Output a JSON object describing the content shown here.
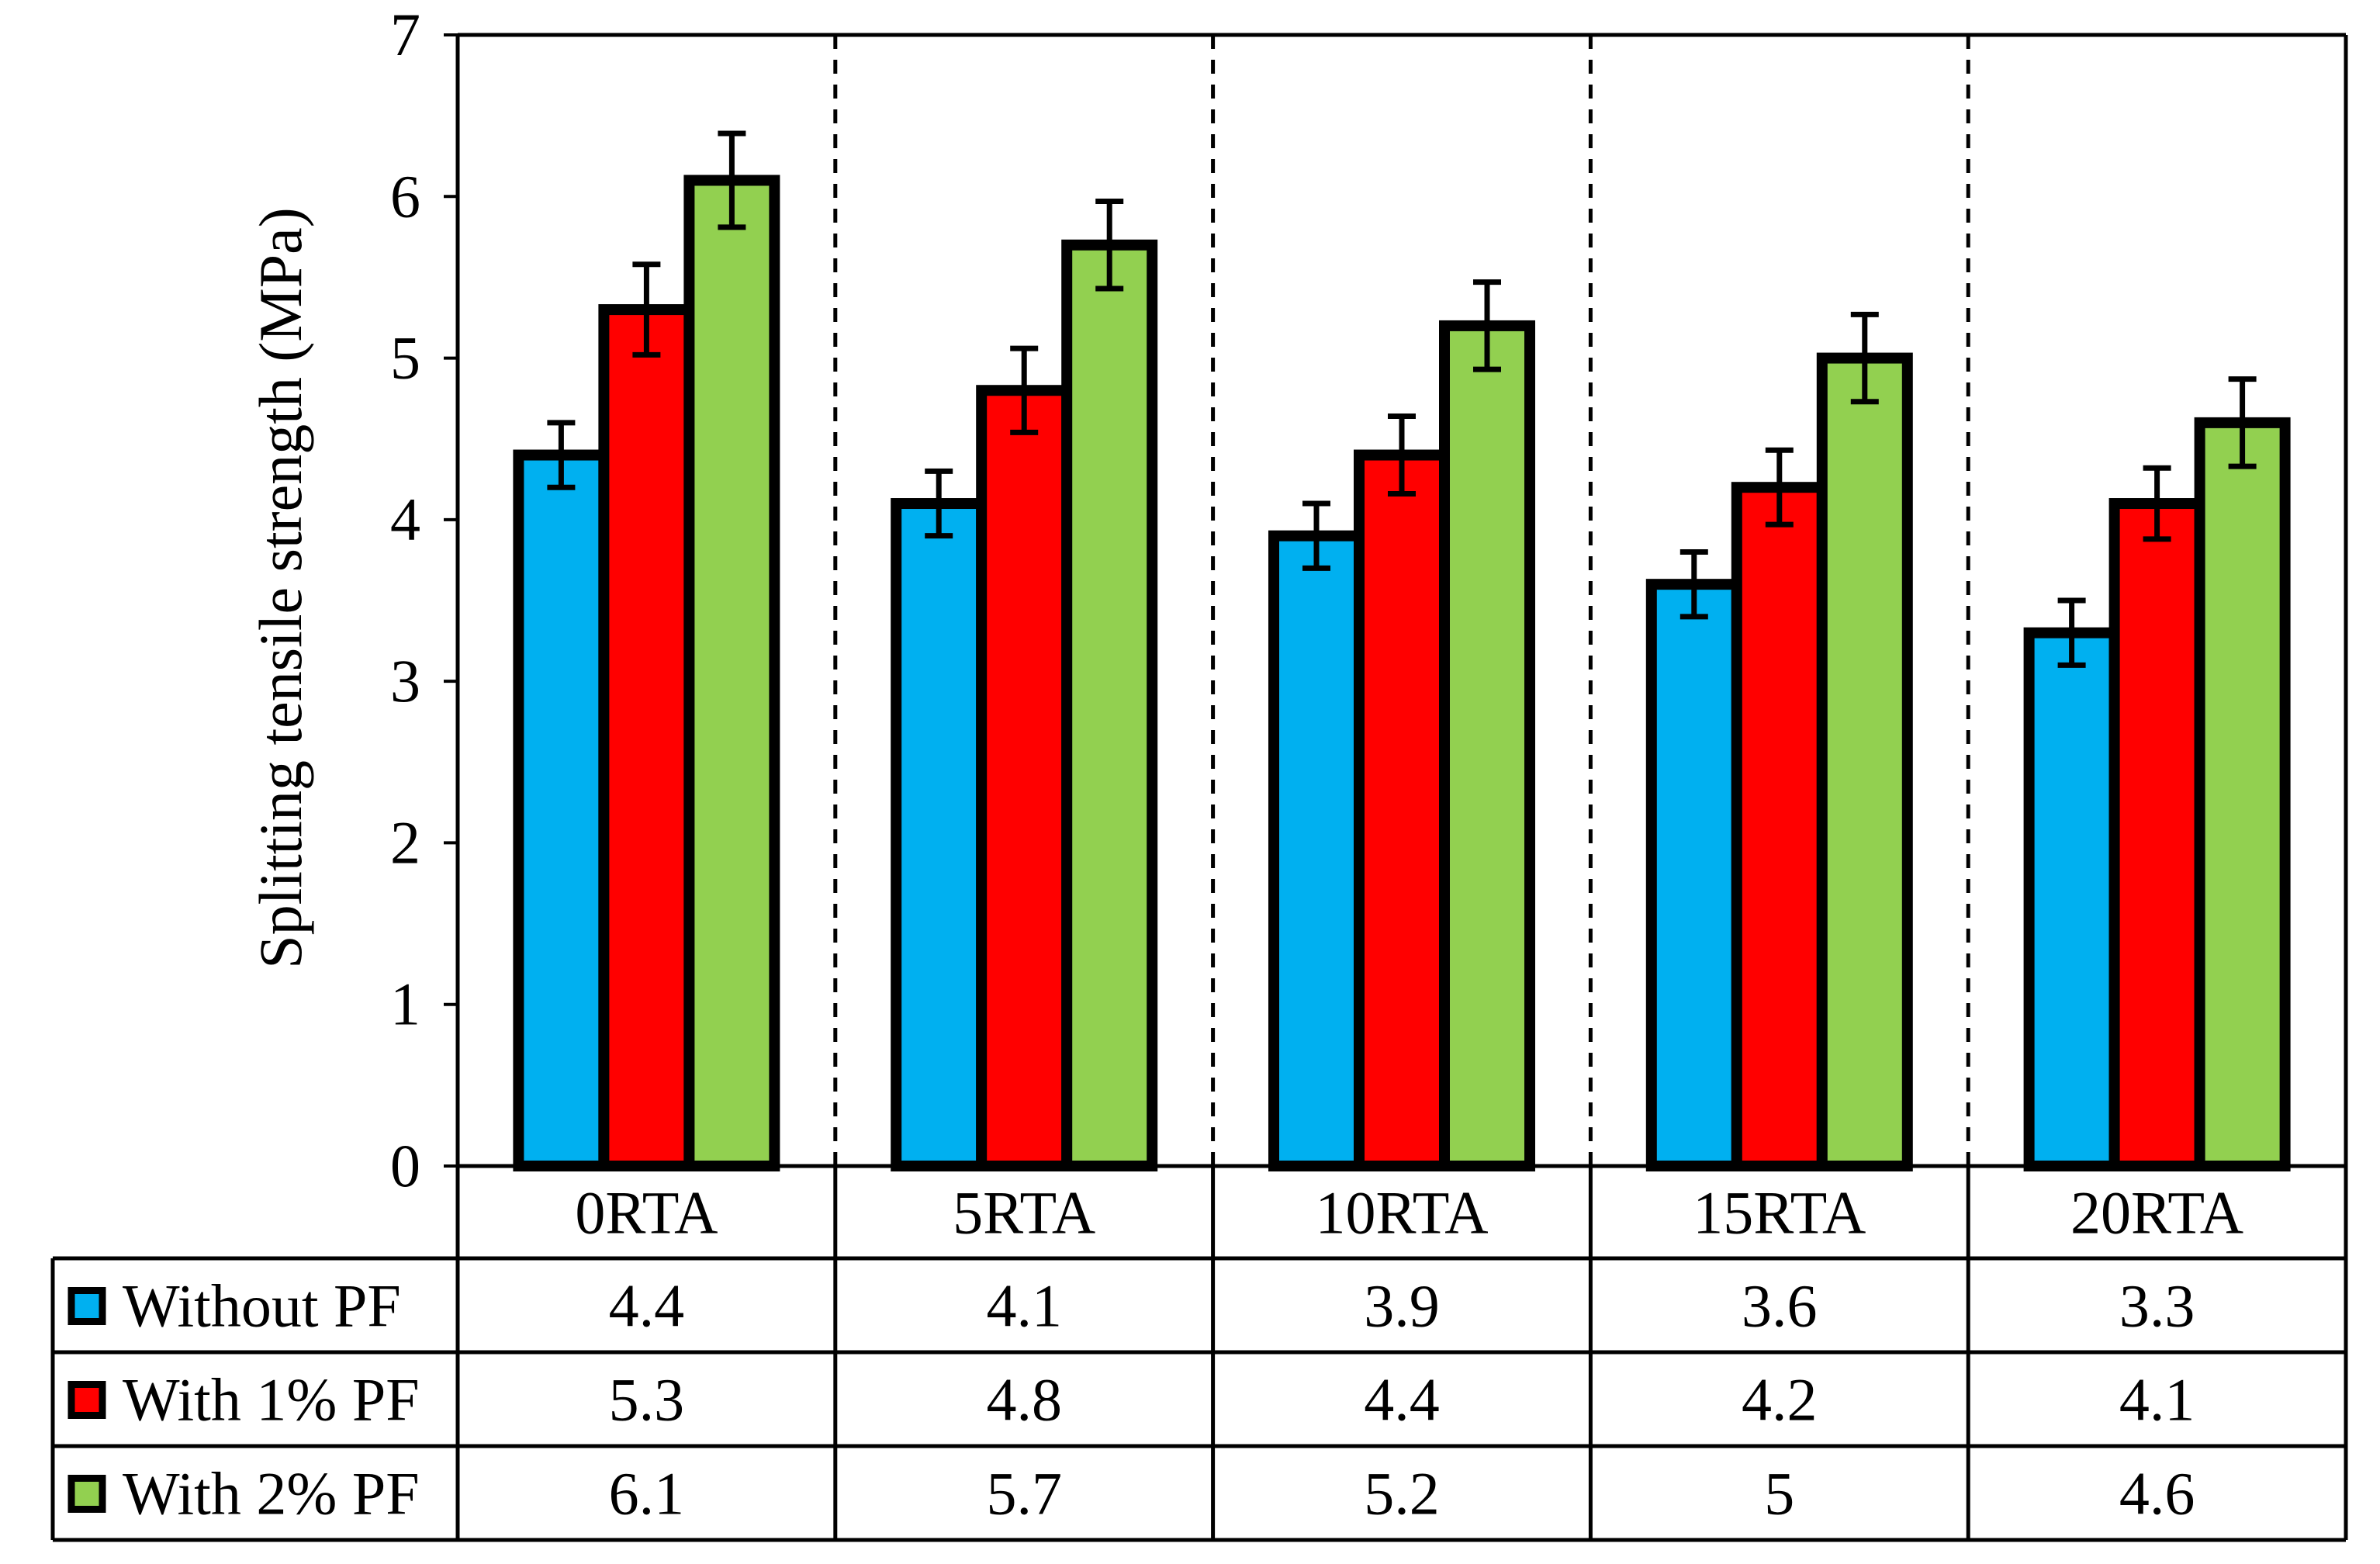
{
  "chart_data": {
    "type": "bar",
    "title": "",
    "xlabel": "",
    "ylabel": "Splitting tensile strength (MPa)",
    "ylim": [
      0,
      7
    ],
    "yticks": [
      "0",
      "1",
      "2",
      "3",
      "4",
      "5",
      "6",
      "7"
    ],
    "categories": [
      "0RTA",
      "5RTA",
      "10RTA",
      "15RTA",
      "20RTA"
    ],
    "series": [
      {
        "name": "Without PF",
        "color": "#00B0F0",
        "values": [
          4.4,
          4.1,
          3.9,
          3.6,
          3.3
        ],
        "labels": [
          "4.4",
          "4.1",
          "3.9",
          "3.6",
          "3.3"
        ],
        "error": [
          0.2,
          0.2,
          0.2,
          0.2,
          0.2
        ]
      },
      {
        "name": "With 1% PF",
        "color": "#FF0000",
        "values": [
          5.3,
          4.8,
          4.4,
          4.2,
          4.1
        ],
        "labels": [
          "5.3",
          "4.8",
          "4.4",
          "4.2",
          "4.1"
        ],
        "error": [
          0.28,
          0.26,
          0.24,
          0.23,
          0.22
        ]
      },
      {
        "name": "With 2% PF",
        "color": "#92D050",
        "values": [
          6.1,
          5.7,
          5.2,
          5.0,
          4.6
        ],
        "labels": [
          "6.1",
          "5.7",
          "5.2",
          "5",
          "4.6"
        ],
        "error": [
          0.29,
          0.27,
          0.27,
          0.27,
          0.27
        ]
      }
    ],
    "data_table": true,
    "grid": false,
    "group_separators": "dashed"
  }
}
